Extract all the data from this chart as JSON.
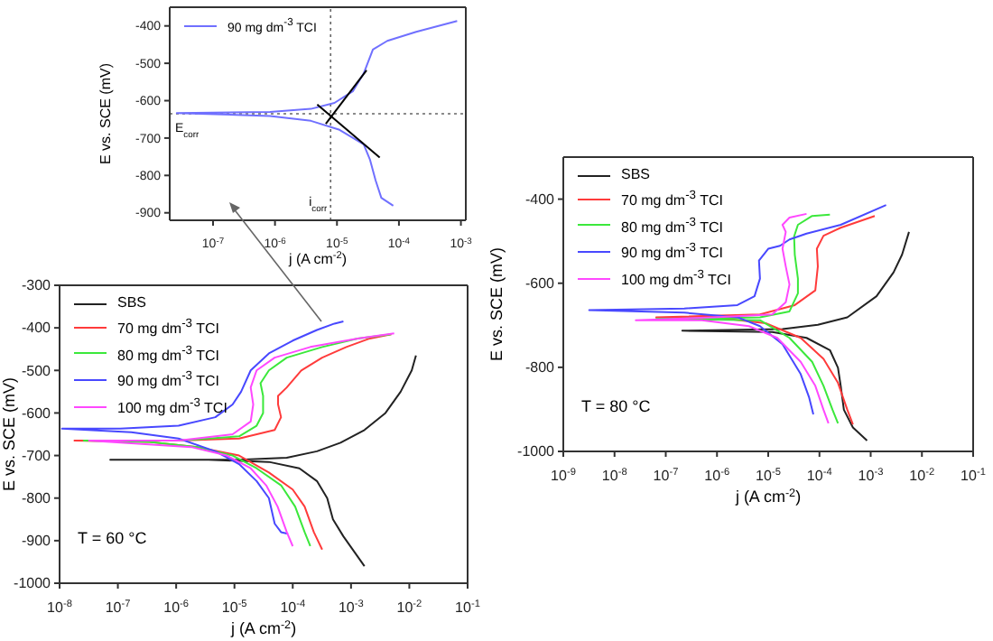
{
  "chart_data": [
    {
      "type": "line",
      "xlabel": "j (A cm$^{-2}$)",
      "ylabel": "E vs. SCE (mV)",
      "log": "x",
      "legend": "top left",
      "xlim": [
        2e-08,
        0.0012
      ],
      "ylim": [
        -920,
        -350
      ],
      "xticks": [
        {
          "value": 1e-07,
          "label": "10$^{-7}$"
        },
        {
          "value": 1e-06,
          "label": "10$^{-6}$"
        },
        {
          "value": 1e-05,
          "label": "10$^{-5}$"
        },
        {
          "value": 0.0001,
          "label": "10$^{-4}$"
        },
        {
          "value": 0.001,
          "label": "10$^{-3}$"
        }
      ],
      "yticks": [
        -900,
        -800,
        -700,
        -600,
        -500,
        -400
      ],
      "ref_lines": [
        {
          "axis": "y",
          "value": -635,
          "label": "E$_{corr}$",
          "color": "#666666",
          "line_style": "dotted"
        },
        {
          "axis": "x",
          "value": 7.9e-06,
          "label": "i$_{corr}$",
          "color": "#666666",
          "line_style": "dotted"
        }
      ],
      "series": [
        {
          "name": "90 mg dm$^{-3}$ TCI",
          "color": "#7070ff",
          "x": [
            8.1e-05,
            5.2e-05,
            4.2e-05,
            3.4e-05,
            2.7e-05,
            1.1e-05,
            3.8e-06,
            8.3e-07,
            2.6e-08,
            8.3e-07,
            3.8e-06,
            9.1e-06,
            1.8e-05,
            2.7e-05,
            3.8e-05,
            6.5e-05,
            0.00019,
            0.00087
          ],
          "values": [
            -881,
            -860,
            -813,
            -757,
            -717,
            -678,
            -654,
            -641,
            -633,
            -630,
            -622,
            -606,
            -575,
            -527,
            -463,
            -440,
            -416,
            -387
          ]
        },
        {
          "type": "line",
          "color": "#000000",
          "x": [
            4.8e-06,
            4.9e-05
          ],
          "values": [
            -610,
            -752
          ]
        },
        {
          "type": "line",
          "color": "#000000",
          "x": [
            6.6e-06,
            3e-05
          ],
          "values": [
            -662,
            -519
          ]
        }
      ]
    },
    {
      "type": "line",
      "xlabel": "j (A cm$^{-2}$)",
      "ylabel": "E vs. SCE (mV)",
      "log": "x",
      "legend": "top left",
      "annotations": [
        "T = 60 °C"
      ],
      "xlim": [
        1e-08,
        0.1
      ],
      "ylim": [
        -1000,
        -300
      ],
      "xticks": [
        {
          "value": 1e-08,
          "label": "10$^{-8}$"
        },
        {
          "value": 1e-07,
          "label": "10$^{-7}$"
        },
        {
          "value": 1e-06,
          "label": "10$^{-6}$"
        },
        {
          "value": 1e-05,
          "label": "10$^{-5}$"
        },
        {
          "value": 0.0001,
          "label": "10$^{-4}$"
        },
        {
          "value": 0.001,
          "label": "10$^{-3}$"
        },
        {
          "value": 0.01,
          "label": "10$^{-2}$"
        },
        {
          "value": 0.1,
          "label": "10$^{-1}$"
        }
      ],
      "yticks": [
        -1000,
        -900,
        -800,
        -700,
        -600,
        -500,
        -400,
        -300
      ],
      "series": [
        {
          "name": "SBS",
          "color": "#222222",
          "x": [
            0.0017,
            0.00074,
            0.00049,
            0.00039,
            0.00026,
            0.00013,
            3.9e-05,
            3.6e-06,
            7.4e-08,
            1.2e-05,
            7.9e-05,
            0.00026,
            0.00066,
            0.0017,
            0.0039,
            0.0071,
            0.011,
            0.013
          ],
          "values": [
            -960,
            -890,
            -850,
            -800,
            -760,
            -730,
            -715,
            -710,
            -710,
            -710,
            -705,
            -690,
            -670,
            -640,
            -600,
            -550,
            -500,
            -465
          ]
        },
        {
          "name": "70 mg dm$^{-3}$ TCI",
          "color": "#ff3b3b",
          "x": [
            0.00032,
            0.00023,
            0.00016,
            0.0001,
            3.9e-05,
            1.2e-05,
            2.3e-06,
            3.5e-07,
            1.8e-08,
            1.1e-06,
            1.2e-05,
            4.9e-05,
            6.3e-05,
            5.6e-05,
            5.6e-05,
            7.9e-05,
            0.00014,
            0.00032,
            0.00083,
            0.0021,
            0.0049
          ],
          "values": [
            -921,
            -880,
            -820,
            -780,
            -740,
            -700,
            -680,
            -668,
            -665,
            -665,
            -660,
            -640,
            -610,
            -580,
            -560,
            -540,
            -500,
            -470,
            -445,
            -425,
            -415
          ]
        },
        {
          "name": "80 mg dm$^{-3}$ TCI",
          "color": "#3be83b",
          "x": [
            0.0002,
            0.00016,
            0.00011,
            6.3e-05,
            2.4e-05,
            9.3e-06,
            2.3e-06,
            3.5e-07,
            2.6e-08,
            1.1e-06,
            1.2e-05,
            2.4e-05,
            3.1e-05,
            3.1e-05,
            2.8e-05,
            3.9e-05,
            7.9e-05,
            0.00032,
            0.0013,
            0.0049
          ],
          "values": [
            -913,
            -880,
            -820,
            -770,
            -730,
            -700,
            -680,
            -668,
            -665,
            -665,
            -655,
            -630,
            -600,
            -560,
            -530,
            -500,
            -470,
            -445,
            -425,
            -415
          ]
        },
        {
          "name": "90 mg dm$^{-3}$ TCI",
          "color": "#4848ff",
          "x": [
            8.3e-05,
            6.3e-05,
            4.9e-05,
            3.9e-05,
            2.4e-05,
            1.2e-05,
            4.7e-06,
            1.1e-06,
            1.7e-07,
            1.1e-08,
            1.1e-07,
            1.1e-06,
            4.7e-06,
            9.3e-06,
            1.3e-05,
            1.9e-05,
            3.9e-05,
            0.0001,
            0.00026,
            0.00052,
            0.00074
          ],
          "values": [
            -884,
            -880,
            -860,
            -800,
            -760,
            -720,
            -690,
            -660,
            -645,
            -637,
            -637,
            -630,
            -610,
            -580,
            -550,
            -500,
            -460,
            -430,
            -405,
            -390,
            -385
          ]
        },
        {
          "name": "100 mg dm$^{-3}$ TCI",
          "color": "#ff48ff",
          "x": [
            0.0001,
            7.9e-05,
            5.5e-05,
            3.5e-05,
            1.9e-05,
            7.4e-06,
            1.8e-06,
            3.2e-08,
            1.1e-06,
            9.3e-06,
            1.9e-05,
            2.1e-05,
            1.9e-05,
            2.4e-05,
            4.9e-05,
            0.0002,
            0.0013,
            0.0055
          ],
          "values": [
            -913,
            -880,
            -820,
            -770,
            -730,
            -700,
            -680,
            -665,
            -665,
            -650,
            -620,
            -580,
            -540,
            -500,
            -470,
            -445,
            -425,
            -413
          ]
        }
      ]
    },
    {
      "type": "line",
      "xlabel": "j (A cm$^{-2}$)",
      "ylabel": "E vs. SCE (mV)",
      "log": "x",
      "legend": "top left",
      "annotations": [
        "T = 80 °C"
      ],
      "xlim": [
        1e-09,
        0.1
      ],
      "ylim": [
        -1000,
        -300
      ],
      "xticks": [
        {
          "value": 1e-09,
          "label": "10$^{-9}$"
        },
        {
          "value": 1e-08,
          "label": "10$^{-8}$"
        },
        {
          "value": 1e-07,
          "label": "10$^{-7}$"
        },
        {
          "value": 1e-06,
          "label": "10$^{-6}$"
        },
        {
          "value": 1e-05,
          "label": "10$^{-5}$"
        },
        {
          "value": 0.0001,
          "label": "10$^{-4}$"
        },
        {
          "value": 0.001,
          "label": "10$^{-3}$"
        },
        {
          "value": 0.01,
          "label": "10$^{-2}$"
        },
        {
          "value": 0.1,
          "label": "10$^{-1}$"
        }
      ],
      "yticks": [
        -1000,
        -800,
        -600,
        -400
      ],
      "series": [
        {
          "name": "SBS",
          "color": "#222222",
          "x": [
            0.00085,
            0.00045,
            0.0003,
            0.00026,
            0.00023,
            0.00016,
            5.6e-05,
            1.2e-05,
            2.1e-07,
            1.9e-05,
            9.3e-05,
            0.00035,
            0.0013,
            0.0028,
            0.0041,
            0.0056
          ],
          "values": [
            -974,
            -943,
            -901,
            -844,
            -801,
            -759,
            -730,
            -716,
            -713,
            -709,
            -699,
            -681,
            -631,
            -574,
            -532,
            -478
          ]
        },
        {
          "name": "70 mg dm$^{-3}$ TCI",
          "color": "#ff3b3b",
          "x": [
            0.00045,
            0.00035,
            0.00023,
            0.00012,
            4.3e-05,
            8.9e-06,
            8.7e-07,
            6.5e-08,
            6.9e-06,
            3.3e-05,
            8.3e-05,
            9.3e-05,
            8.9e-05,
            0.00012,
            0.00026,
            0.0012
          ],
          "values": [
            -936,
            -901,
            -837,
            -780,
            -730,
            -695,
            -681,
            -681,
            -674,
            -652,
            -617,
            -560,
            -518,
            -487,
            -468,
            -440
          ]
        },
        {
          "name": "80 mg dm$^{-3}$ TCI",
          "color": "#3be83b",
          "x": [
            0.00023,
            0.00018,
            0.00012,
            7.2e-05,
            2.6e-05,
            6.9e-06,
            6.5e-08,
            6.9e-06,
            2.6e-05,
            3.8e-05,
            3.8e-05,
            3.3e-05,
            3.2e-05,
            3.8e-05,
            7.2e-05,
            0.00016
          ],
          "values": [
            -933,
            -901,
            -844,
            -787,
            -730,
            -688,
            -685,
            -681,
            -667,
            -624,
            -589,
            -532,
            -489,
            -461,
            -440,
            -437
          ]
        },
        {
          "name": "90 mg dm$^{-3}$ TCI",
          "color": "#4848ff",
          "x": [
            7.6e-05,
            6.3e-05,
            4.3e-05,
            1.9e-05,
            6.9e-06,
            2.5e-06,
            2.3e-07,
            3.2e-09,
            2.3e-07,
            2.5e-06,
            5.4e-06,
            6.9e-06,
            6.6e-06,
            1e-05,
            1.7e-05,
            2.6e-05,
            5.6e-05,
            0.00026,
            0.002
          ],
          "values": [
            -912,
            -872,
            -816,
            -745,
            -702,
            -681,
            -670,
            -664,
            -660,
            -652,
            -631,
            -589,
            -546,
            -518,
            -511,
            -496,
            -482,
            -461,
            -414
          ]
        },
        {
          "name": "100 mg dm$^{-3}$ TCI",
          "color": "#ff48ff",
          "x": [
            0.00015,
            0.00012,
            8.3e-05,
            4.3e-05,
            1.5e-05,
            4.2e-06,
            5.1e-07,
            2.6e-08,
            8.7e-07,
            1.2e-05,
            2.2e-05,
            2.6e-05,
            2.2e-05,
            1.9e-05,
            2.2e-05,
            1.9e-05,
            2.6e-05,
            5.6e-05
          ],
          "values": [
            -933,
            -901,
            -844,
            -787,
            -730,
            -702,
            -688,
            -688,
            -681,
            -674,
            -645,
            -603,
            -560,
            -518,
            -478,
            -461,
            -444,
            -435
          ]
        }
      ]
    }
  ]
}
